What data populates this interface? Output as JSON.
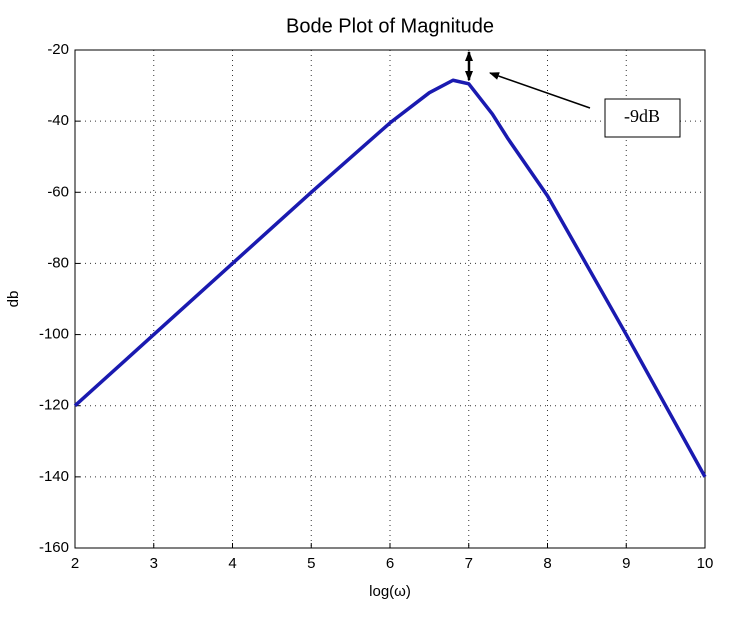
{
  "chart_data": {
    "type": "line",
    "title": "Bode Plot of Magnitude",
    "x_label": "log(ω)",
    "y_label": "db",
    "x": [
      2,
      3,
      4,
      5,
      6,
      6.5,
      6.8,
      7,
      7.3,
      7.5,
      8,
      9,
      10
    ],
    "values": [
      -120,
      -100,
      -80,
      -60,
      -40.5,
      -32,
      -28.5,
      -29.5,
      -38,
      -45,
      -61,
      -100,
      -140
    ],
    "color": "#1a1ab0",
    "xlim": [
      2,
      10
    ],
    "xticks": [
      2,
      3,
      4,
      5,
      6,
      7,
      8,
      9,
      10
    ],
    "ylim": [
      -160,
      -20
    ],
    "yticks": [
      -160,
      -140,
      -120,
      -100,
      -80,
      -60,
      -40,
      -20
    ],
    "grid": true,
    "annotation": "-9dB"
  }
}
